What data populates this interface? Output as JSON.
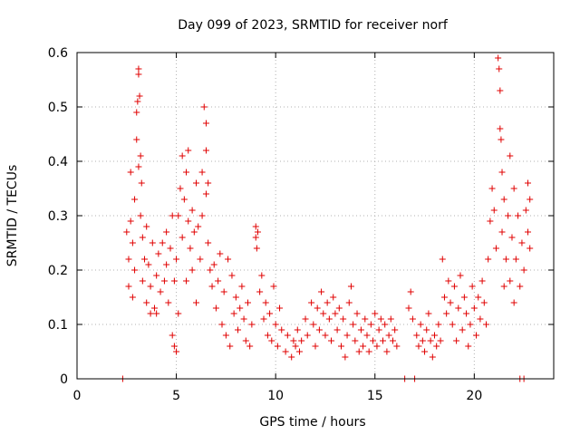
{
  "chart_data": {
    "type": "scatter",
    "title": "Day 099 of 2023, SRMTID for receiver norf",
    "xlabel": "GPS time / hours",
    "ylabel": "SRMTID / TECUs",
    "xlim": [
      0,
      24
    ],
    "ylim": [
      0,
      0.6
    ],
    "x_ticks": [
      0,
      5,
      10,
      15,
      20
    ],
    "x_tick_labels": [
      "0",
      "5",
      "10",
      "15",
      "20"
    ],
    "y_ticks": [
      0,
      0.1,
      0.2,
      0.3,
      0.4,
      0.5,
      0.6
    ],
    "y_tick_labels": [
      "0",
      "0.1",
      "0.2",
      "0.3",
      "0.4",
      "0.5",
      "0.6"
    ],
    "grid": true,
    "marker": "plus",
    "color": "#e00000",
    "series": [
      {
        "name": "SRMTID",
        "points": [
          [
            2.3,
            0.0
          ],
          [
            2.5,
            0.27
          ],
          [
            2.6,
            0.22
          ],
          [
            2.6,
            0.17
          ],
          [
            2.7,
            0.29
          ],
          [
            2.7,
            0.38
          ],
          [
            2.8,
            0.25
          ],
          [
            2.8,
            0.15
          ],
          [
            2.9,
            0.33
          ],
          [
            2.9,
            0.2
          ],
          [
            3.0,
            0.49
          ],
          [
            3.0,
            0.44
          ],
          [
            3.05,
            0.51
          ],
          [
            3.1,
            0.57
          ],
          [
            3.1,
            0.56
          ],
          [
            3.15,
            0.52
          ],
          [
            3.1,
            0.39
          ],
          [
            3.2,
            0.41
          ],
          [
            3.2,
            0.3
          ],
          [
            3.25,
            0.36
          ],
          [
            3.3,
            0.26
          ],
          [
            3.3,
            0.18
          ],
          [
            3.4,
            0.22
          ],
          [
            3.5,
            0.14
          ],
          [
            3.5,
            0.28
          ],
          [
            3.6,
            0.21
          ],
          [
            3.7,
            0.12
          ],
          [
            3.7,
            0.17
          ],
          [
            3.8,
            0.25
          ],
          [
            3.9,
            0.13
          ],
          [
            4.0,
            0.19
          ],
          [
            4.0,
            0.12
          ],
          [
            4.1,
            0.23
          ],
          [
            4.2,
            0.16
          ],
          [
            4.3,
            0.25
          ],
          [
            4.4,
            0.18
          ],
          [
            4.5,
            0.27
          ],
          [
            4.5,
            0.21
          ],
          [
            4.6,
            0.14
          ],
          [
            4.7,
            0.24
          ],
          [
            4.8,
            0.3
          ],
          [
            4.8,
            0.08
          ],
          [
            4.9,
            0.06
          ],
          [
            4.9,
            0.18
          ],
          [
            5.0,
            0.22
          ],
          [
            5.0,
            0.05
          ],
          [
            5.1,
            0.3
          ],
          [
            5.1,
            0.12
          ],
          [
            5.2,
            0.35
          ],
          [
            5.3,
            0.41
          ],
          [
            5.3,
            0.26
          ],
          [
            5.4,
            0.33
          ],
          [
            5.5,
            0.38
          ],
          [
            5.5,
            0.18
          ],
          [
            5.6,
            0.42
          ],
          [
            5.6,
            0.29
          ],
          [
            5.7,
            0.24
          ],
          [
            5.8,
            0.31
          ],
          [
            5.8,
            0.2
          ],
          [
            5.9,
            0.27
          ],
          [
            6.0,
            0.36
          ],
          [
            6.0,
            0.14
          ],
          [
            6.1,
            0.28
          ],
          [
            6.2,
            0.22
          ],
          [
            6.3,
            0.38
          ],
          [
            6.3,
            0.3
          ],
          [
            6.4,
            0.5
          ],
          [
            6.5,
            0.47
          ],
          [
            6.5,
            0.42
          ],
          [
            6.5,
            0.34
          ],
          [
            6.6,
            0.36
          ],
          [
            6.6,
            0.25
          ],
          [
            6.7,
            0.2
          ],
          [
            6.8,
            0.17
          ],
          [
            6.9,
            0.21
          ],
          [
            7.0,
            0.13
          ],
          [
            7.1,
            0.18
          ],
          [
            7.2,
            0.23
          ],
          [
            7.3,
            0.1
          ],
          [
            7.4,
            0.16
          ],
          [
            7.5,
            0.08
          ],
          [
            7.6,
            0.22
          ],
          [
            7.7,
            0.06
          ],
          [
            7.8,
            0.19
          ],
          [
            7.9,
            0.12
          ],
          [
            8.0,
            0.15
          ],
          [
            8.1,
            0.09
          ],
          [
            8.2,
            0.13
          ],
          [
            8.3,
            0.17
          ],
          [
            8.4,
            0.11
          ],
          [
            8.5,
            0.07
          ],
          [
            8.6,
            0.14
          ],
          [
            8.7,
            0.06
          ],
          [
            8.8,
            0.1
          ],
          [
            9.0,
            0.28
          ],
          [
            9.0,
            0.26
          ],
          [
            9.05,
            0.24
          ],
          [
            9.1,
            0.27
          ],
          [
            9.2,
            0.16
          ],
          [
            9.3,
            0.19
          ],
          [
            9.4,
            0.11
          ],
          [
            9.5,
            0.14
          ],
          [
            9.6,
            0.08
          ],
          [
            9.7,
            0.12
          ],
          [
            9.8,
            0.07
          ],
          [
            9.9,
            0.17
          ],
          [
            10.0,
            0.1
          ],
          [
            10.1,
            0.06
          ],
          [
            10.2,
            0.13
          ],
          [
            10.3,
            0.09
          ],
          [
            10.5,
            0.05
          ],
          [
            10.6,
            0.08
          ],
          [
            10.8,
            0.04
          ],
          [
            10.9,
            0.07
          ],
          [
            11.0,
            0.06
          ],
          [
            11.1,
            0.09
          ],
          [
            11.2,
            0.05
          ],
          [
            11.3,
            0.07
          ],
          [
            11.5,
            0.11
          ],
          [
            11.6,
            0.08
          ],
          [
            11.8,
            0.14
          ],
          [
            11.9,
            0.1
          ],
          [
            12.0,
            0.06
          ],
          [
            12.1,
            0.13
          ],
          [
            12.2,
            0.09
          ],
          [
            12.3,
            0.16
          ],
          [
            12.4,
            0.12
          ],
          [
            12.5,
            0.08
          ],
          [
            12.6,
            0.14
          ],
          [
            12.7,
            0.11
          ],
          [
            12.8,
            0.07
          ],
          [
            12.9,
            0.15
          ],
          [
            13.0,
            0.12
          ],
          [
            13.1,
            0.09
          ],
          [
            13.2,
            0.13
          ],
          [
            13.3,
            0.06
          ],
          [
            13.4,
            0.11
          ],
          [
            13.5,
            0.04
          ],
          [
            13.6,
            0.08
          ],
          [
            13.7,
            0.14
          ],
          [
            13.8,
            0.17
          ],
          [
            13.9,
            0.1
          ],
          [
            14.0,
            0.07
          ],
          [
            14.1,
            0.12
          ],
          [
            14.2,
            0.05
          ],
          [
            14.3,
            0.09
          ],
          [
            14.4,
            0.06
          ],
          [
            14.5,
            0.11
          ],
          [
            14.6,
            0.08
          ],
          [
            14.7,
            0.05
          ],
          [
            14.8,
            0.1
          ],
          [
            14.9,
            0.07
          ],
          [
            15.0,
            0.12
          ],
          [
            15.1,
            0.06
          ],
          [
            15.2,
            0.09
          ],
          [
            15.3,
            0.11
          ],
          [
            15.4,
            0.07
          ],
          [
            15.5,
            0.1
          ],
          [
            15.6,
            0.05
          ],
          [
            15.7,
            0.08
          ],
          [
            15.8,
            0.11
          ],
          [
            15.9,
            0.07
          ],
          [
            16.0,
            0.09
          ],
          [
            16.1,
            0.06
          ],
          [
            16.5,
            0.0
          ],
          [
            16.7,
            0.13
          ],
          [
            16.8,
            0.16
          ],
          [
            16.9,
            0.11
          ],
          [
            17.0,
            0.0
          ],
          [
            17.1,
            0.08
          ],
          [
            17.2,
            0.06
          ],
          [
            17.3,
            0.1
          ],
          [
            17.4,
            0.07
          ],
          [
            17.5,
            0.05
          ],
          [
            17.6,
            0.09
          ],
          [
            17.7,
            0.12
          ],
          [
            17.8,
            0.07
          ],
          [
            17.9,
            0.04
          ],
          [
            18.0,
            0.08
          ],
          [
            18.1,
            0.06
          ],
          [
            18.2,
            0.1
          ],
          [
            18.3,
            0.07
          ],
          [
            18.4,
            0.22
          ],
          [
            18.5,
            0.15
          ],
          [
            18.6,
            0.12
          ],
          [
            18.7,
            0.18
          ],
          [
            18.8,
            0.14
          ],
          [
            18.9,
            0.1
          ],
          [
            19.0,
            0.17
          ],
          [
            19.1,
            0.07
          ],
          [
            19.2,
            0.13
          ],
          [
            19.3,
            0.19
          ],
          [
            19.4,
            0.09
          ],
          [
            19.5,
            0.15
          ],
          [
            19.6,
            0.12
          ],
          [
            19.7,
            0.06
          ],
          [
            19.8,
            0.1
          ],
          [
            19.9,
            0.17
          ],
          [
            20.0,
            0.13
          ],
          [
            20.1,
            0.08
          ],
          [
            20.2,
            0.15
          ],
          [
            20.3,
            0.11
          ],
          [
            20.4,
            0.18
          ],
          [
            20.5,
            0.14
          ],
          [
            20.6,
            0.1
          ],
          [
            20.7,
            0.22
          ],
          [
            20.8,
            0.29
          ],
          [
            20.9,
            0.35
          ],
          [
            21.0,
            0.31
          ],
          [
            21.1,
            0.24
          ],
          [
            21.2,
            0.59
          ],
          [
            21.25,
            0.57
          ],
          [
            21.3,
            0.53
          ],
          [
            21.3,
            0.46
          ],
          [
            21.35,
            0.44
          ],
          [
            21.4,
            0.38
          ],
          [
            21.4,
            0.27
          ],
          [
            21.5,
            0.33
          ],
          [
            21.5,
            0.17
          ],
          [
            21.6,
            0.22
          ],
          [
            21.7,
            0.3
          ],
          [
            21.8,
            0.41
          ],
          [
            21.8,
            0.18
          ],
          [
            21.9,
            0.26
          ],
          [
            22.0,
            0.35
          ],
          [
            22.0,
            0.14
          ],
          [
            22.1,
            0.22
          ],
          [
            22.2,
            0.3
          ],
          [
            22.3,
            0.17
          ],
          [
            22.3,
            0.0
          ],
          [
            22.4,
            0.25
          ],
          [
            22.5,
            0.2
          ],
          [
            22.5,
            0.0
          ],
          [
            22.6,
            0.31
          ],
          [
            22.7,
            0.36
          ],
          [
            22.7,
            0.27
          ],
          [
            22.8,
            0.33
          ],
          [
            22.8,
            0.24
          ]
        ]
      }
    ]
  }
}
